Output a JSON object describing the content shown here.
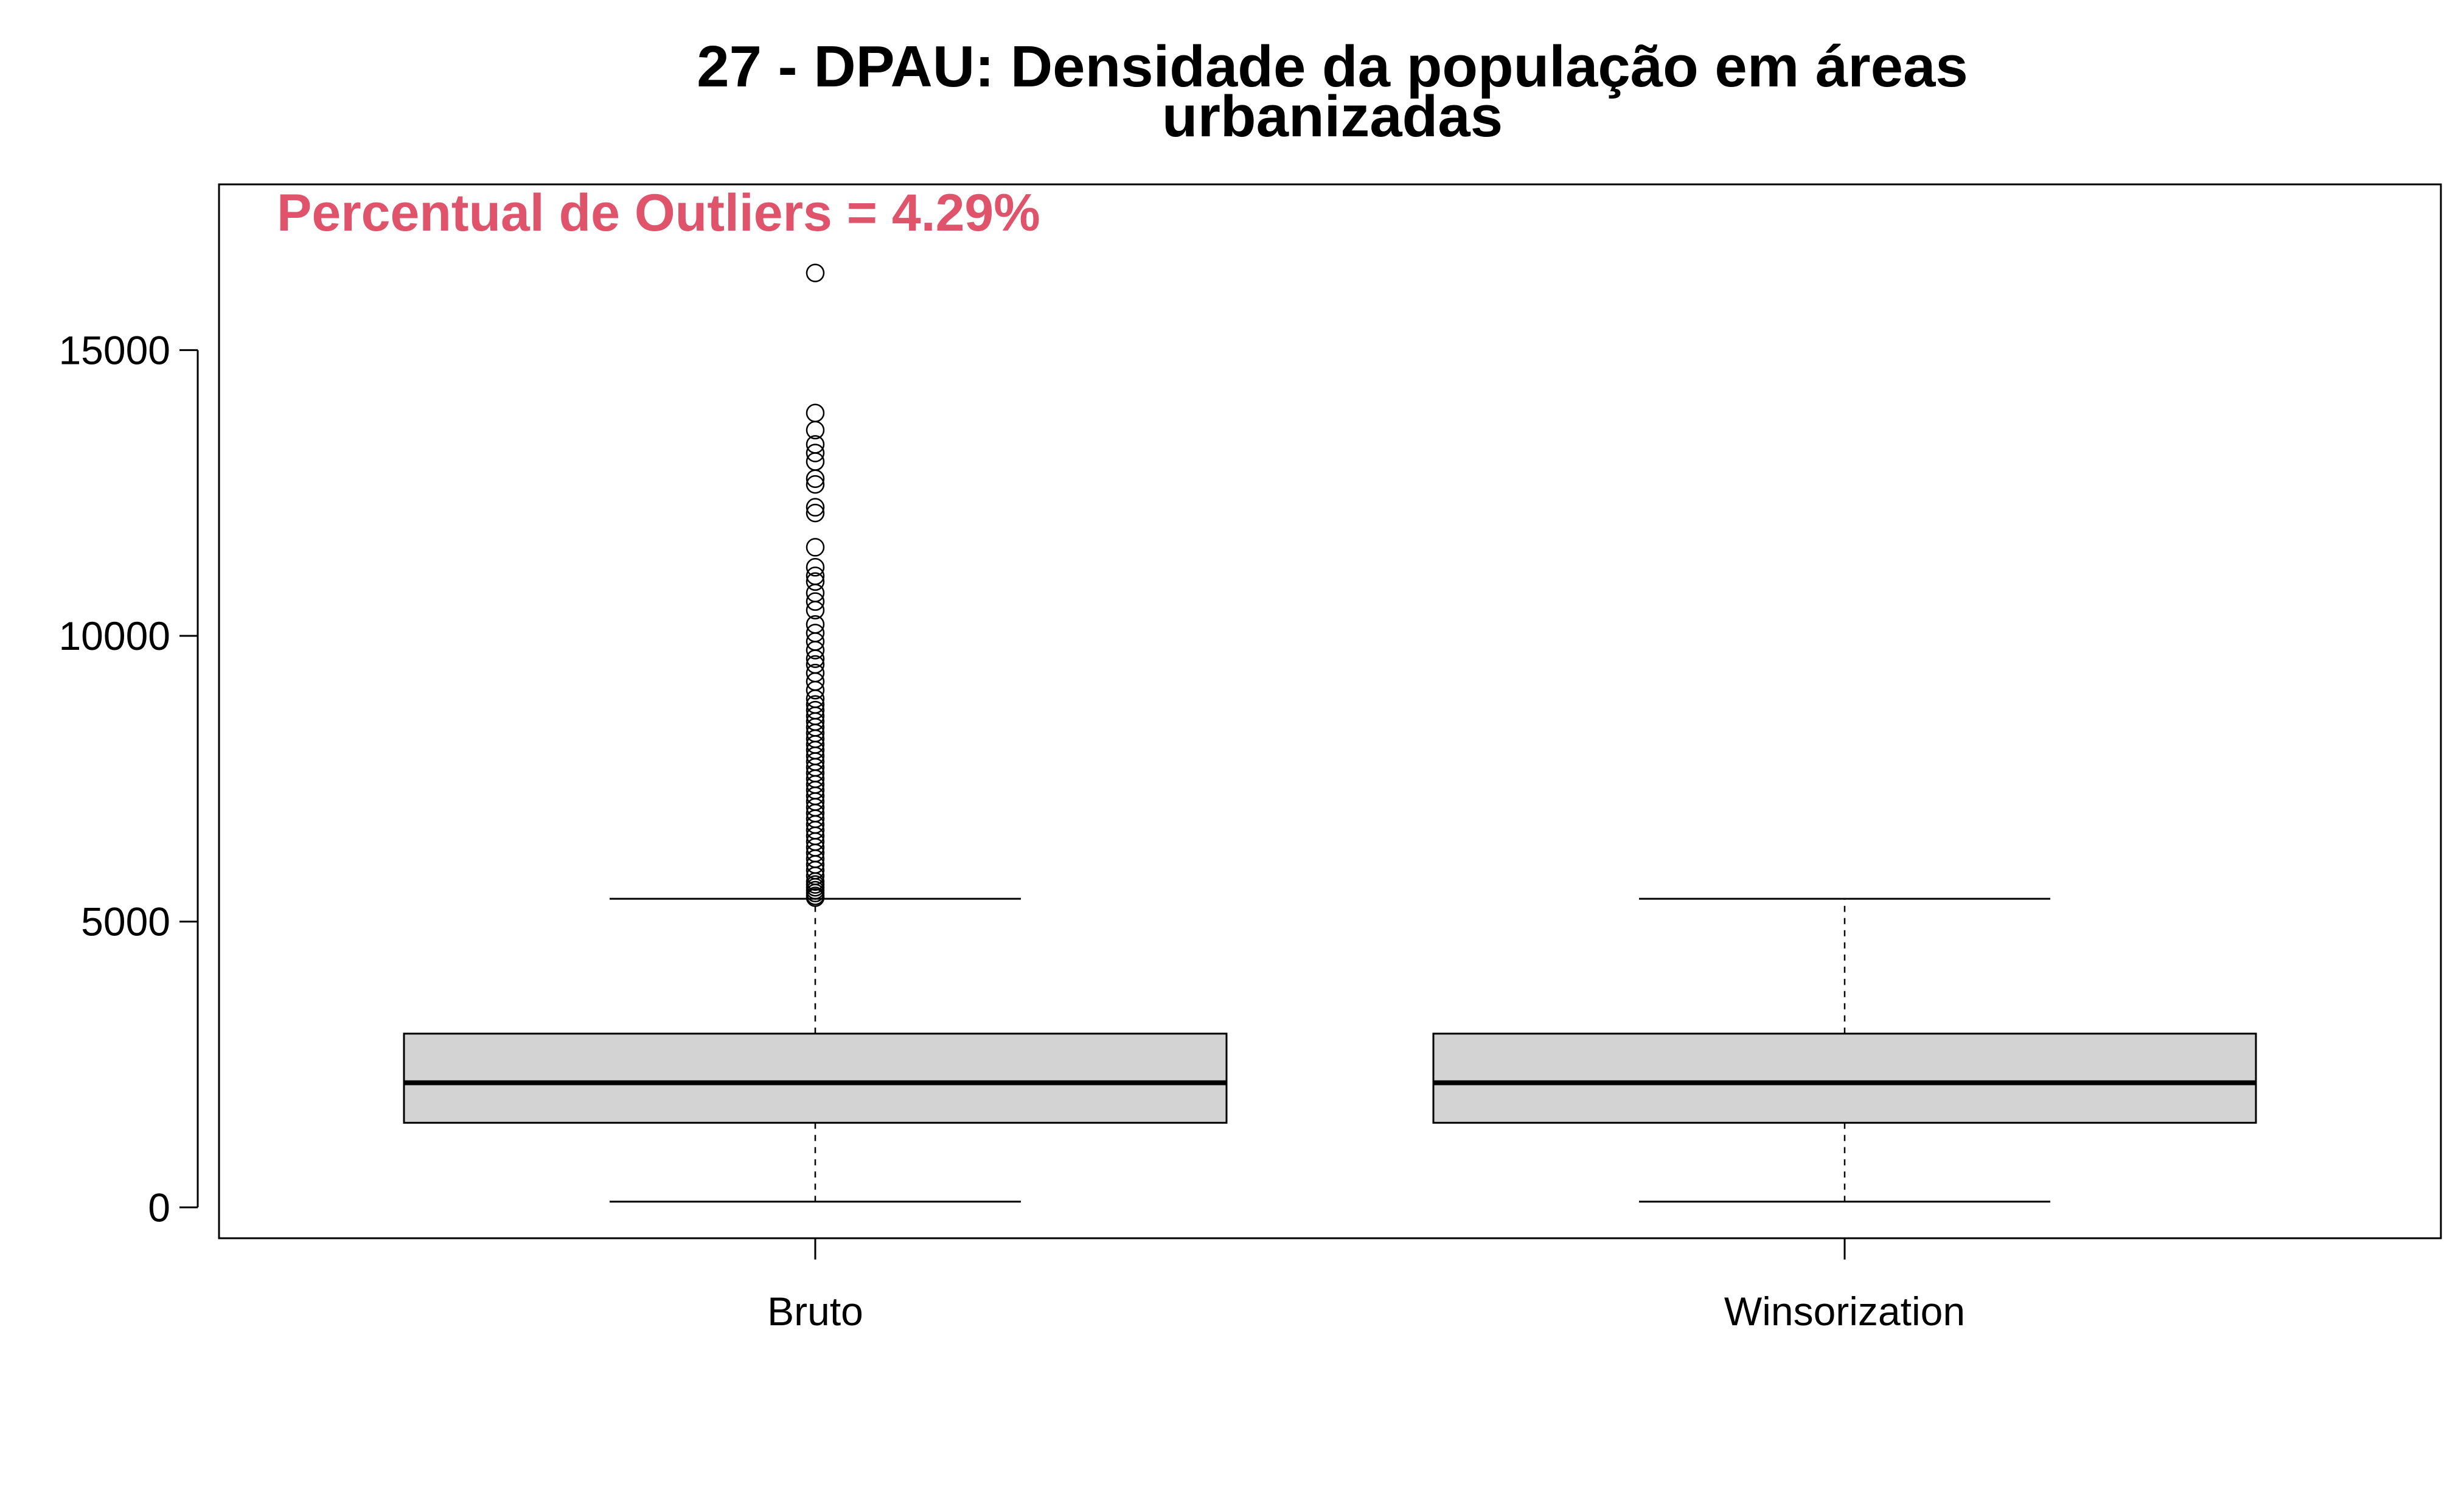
{
  "chart_data": {
    "type": "boxplot",
    "title": [
      "27 - DPAU: Densidade da população em áreas",
      "urbanizadas"
    ],
    "annotation": "Percentual de Outliers = 4.29%",
    "annotation_color": "#DF536B",
    "box_fill": "#D3D3D3",
    "xlabel": "",
    "ylabel": "",
    "ylim": [
      -540,
      17900
    ],
    "yticks": [
      0,
      5000,
      10000,
      15000
    ],
    "ytick_labels": [
      "0",
      "5000",
      "10000",
      "15000"
    ],
    "categories": [
      "Bruto",
      "Winsorization"
    ],
    "boxes": [
      {
        "name": "Bruto",
        "whisker_low": 100,
        "q1": 1480,
        "median": 2180,
        "q3": 3040,
        "whisker_high": 5400,
        "outliers": [
          16350,
          13900,
          13600,
          13350,
          13200,
          13050,
          12750,
          12650,
          12250,
          12150,
          11550,
          11200,
          11050,
          10950,
          10750,
          10600,
          10450,
          10200,
          10050,
          9900,
          9750,
          9600,
          9500,
          9350,
          9200,
          9050,
          8900,
          8800,
          8700,
          8600,
          8500,
          8400,
          8300,
          8200,
          8100,
          8000,
          7900,
          7800,
          7700,
          7600,
          7500,
          7400,
          7300,
          7200,
          7100,
          7000,
          6900,
          6800,
          6700,
          6600,
          6500,
          6400,
          6300,
          6200,
          6100,
          6000,
          5900,
          5800,
          5700,
          5650,
          5600,
          5550,
          5500,
          5450,
          5420
        ]
      },
      {
        "name": "Winsorization",
        "whisker_low": 100,
        "q1": 1480,
        "median": 2180,
        "q3": 3040,
        "whisker_high": 5400,
        "outliers": []
      }
    ]
  }
}
